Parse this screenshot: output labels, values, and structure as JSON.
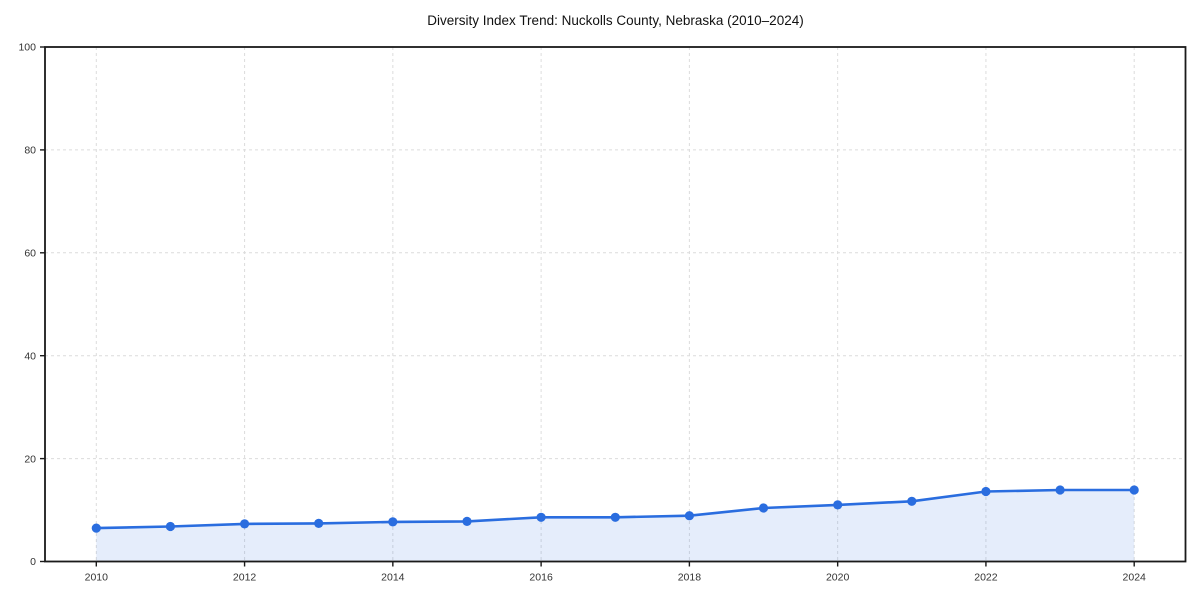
{
  "chart_data": {
    "type": "line",
    "title": "Diversity Index Trend: Nuckolls County, Nebraska (2010–2024)",
    "x": [
      2010,
      2011,
      2012,
      2013,
      2014,
      2015,
      2016,
      2017,
      2018,
      2019,
      2020,
      2021,
      2022,
      2023,
      2024
    ],
    "series": [
      {
        "name": "Diversity Index",
        "values": [
          6.5,
          6.8,
          7.3,
          7.4,
          7.7,
          7.8,
          8.6,
          8.6,
          8.9,
          10.4,
          11.0,
          11.7,
          13.6,
          13.9,
          13.9
        ]
      }
    ],
    "xlabel": "",
    "ylabel": "",
    "ylim": [
      0,
      100
    ],
    "yticks": [
      0,
      20,
      40,
      60,
      80,
      100
    ],
    "xticks": [
      2010,
      2012,
      2014,
      2016,
      2018,
      2020,
      2022,
      2024
    ],
    "grid": "dashed gridlines at labeled ticks, both axes",
    "legend": "none",
    "area_fill": true,
    "markers": true,
    "style": {
      "line_color": "#2a6ddf",
      "marker_color": "#2a6ddf",
      "fill_color": "#2a6ddf",
      "fill_opacity": 0.12,
      "grid_color": "#dcdcdc",
      "axis_color": "#1a1a1a",
      "tick_label_color": "#333333",
      "title_color": "#111111"
    }
  }
}
